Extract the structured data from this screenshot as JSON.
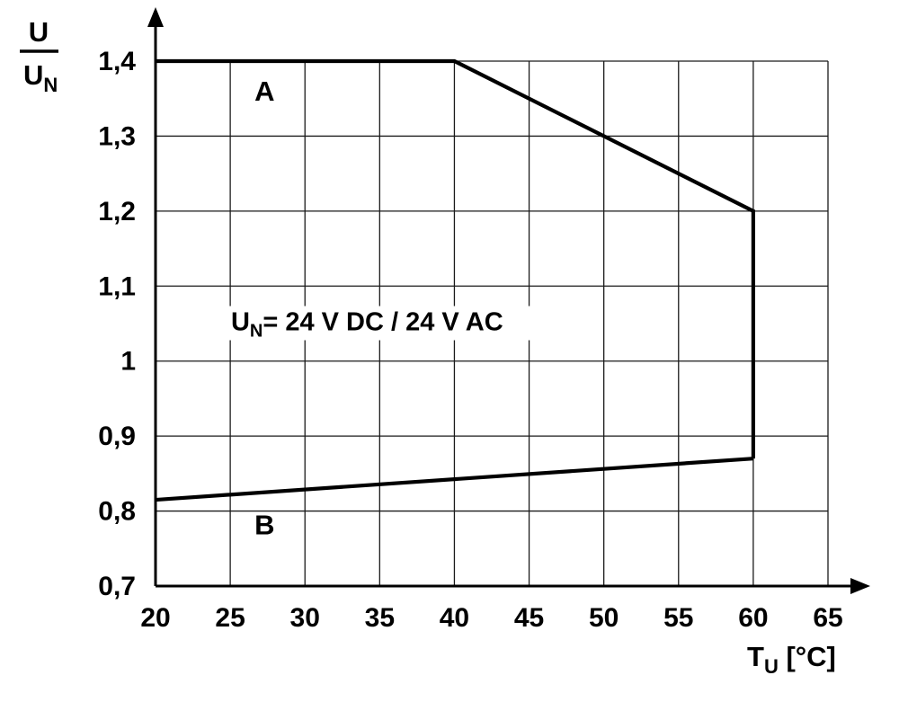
{
  "chart_data": {
    "type": "line",
    "title": "",
    "description": "Supply voltage derating diagram: permissible voltage ratio U/UN versus ambient temperature TU",
    "xlabel": {
      "base": "T",
      "sub": "U",
      "rest": " [°C]"
    },
    "ylabel": {
      "numerator": "U",
      "denominator": "U",
      "denominator_sub": "N"
    },
    "xlim": [
      20,
      65
    ],
    "ylim": [
      0.7,
      1.4
    ],
    "grid": true,
    "x_ticks": [
      {
        "value": 20,
        "label": "20"
      },
      {
        "value": 25,
        "label": "25"
      },
      {
        "value": 30,
        "label": "30"
      },
      {
        "value": 35,
        "label": "35"
      },
      {
        "value": 40,
        "label": "40"
      },
      {
        "value": 45,
        "label": "45"
      },
      {
        "value": 50,
        "label": "50"
      },
      {
        "value": 55,
        "label": "55"
      },
      {
        "value": 60,
        "label": "60"
      },
      {
        "value": 65,
        "label": "65"
      }
    ],
    "y_ticks": [
      {
        "value": 1.4,
        "label": "1,4"
      },
      {
        "value": 1.3,
        "label": "1,3"
      },
      {
        "value": 1.2,
        "label": "1,2"
      },
      {
        "value": 1.1,
        "label": "1,1"
      },
      {
        "value": 1.0,
        "label": "1"
      },
      {
        "value": 0.9,
        "label": "0,9"
      },
      {
        "value": 0.8,
        "label": "0,8"
      },
      {
        "value": 0.7,
        "label": "0,7"
      }
    ],
    "series": [
      {
        "name": "A",
        "label": "A",
        "label_pos": [
          27.3,
          1.347
        ],
        "points": [
          [
            20,
            1.4
          ],
          [
            40,
            1.4
          ],
          [
            60,
            1.2
          ],
          [
            60,
            0.87
          ]
        ]
      },
      {
        "name": "B",
        "label": "B",
        "label_pos": [
          27.3,
          0.769
        ],
        "points": [
          [
            20,
            0.815
          ],
          [
            60,
            0.87
          ]
        ]
      }
    ],
    "annotation": {
      "base": "U",
      "sub": "N",
      "rest": "= 24 V DC / 24 V AC",
      "pos": [
        25.05,
        1.041
      ]
    },
    "colors": {
      "line": "#000000",
      "grid": "#1a1a1a",
      "axis": "#000000",
      "text": "#000000",
      "background": "#ffffff"
    }
  }
}
